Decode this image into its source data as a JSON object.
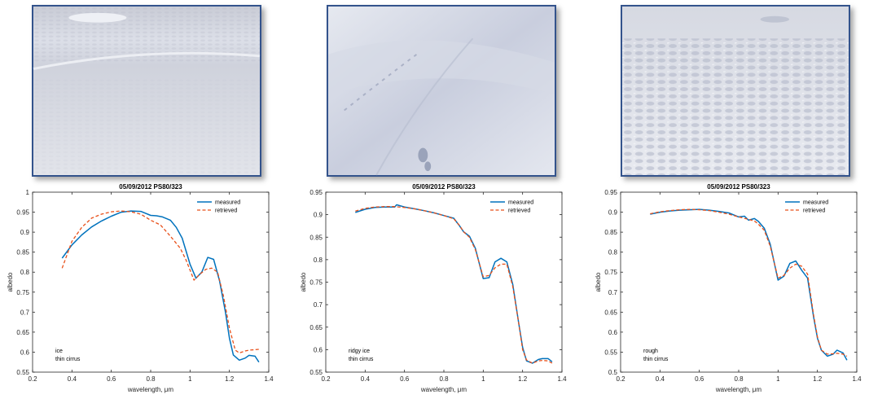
{
  "photos": [
    {
      "name": "ice"
    },
    {
      "name": "ridgy ice"
    },
    {
      "name": "rough"
    }
  ],
  "colors": {
    "measured": "#0072bd",
    "retrieved": "#e8501a",
    "frame": "#33538c"
  },
  "chart_data": [
    {
      "type": "line",
      "title": "05/09/2012 PS80/323",
      "xlabel": "wavelength, μm",
      "ylabel": "albedo",
      "xlim": [
        0.2,
        1.4
      ],
      "ylim": [
        0.55,
        1.0
      ],
      "xticks": [
        "0.2",
        "0.4",
        "0.6",
        "0.8",
        "1",
        "1.2",
        "1.4"
      ],
      "yticks": [
        "0.55",
        "0.6",
        "0.65",
        "0.7",
        "0.75",
        "0.8",
        "0.85",
        "0.9",
        "0.95",
        "1"
      ],
      "legend": {
        "placement": "top-right",
        "measured_label": "measured",
        "retrieved_label": "retrieved"
      },
      "annotation": [
        "ice",
        "thin cirrus"
      ],
      "series": [
        {
          "name": "measured",
          "style": "solid",
          "x": [
            0.35,
            0.4,
            0.45,
            0.5,
            0.55,
            0.6,
            0.65,
            0.7,
            0.75,
            0.8,
            0.83,
            0.86,
            0.9,
            0.93,
            0.96,
            1.0,
            1.03,
            1.06,
            1.09,
            1.12,
            1.15,
            1.18,
            1.2,
            1.22,
            1.25,
            1.28,
            1.3,
            1.33,
            1.35
          ],
          "y": [
            0.835,
            0.868,
            0.893,
            0.913,
            0.928,
            0.94,
            0.95,
            0.953,
            0.952,
            0.942,
            0.941,
            0.938,
            0.93,
            0.912,
            0.885,
            0.82,
            0.785,
            0.8,
            0.837,
            0.832,
            0.778,
            0.7,
            0.635,
            0.593,
            0.58,
            0.585,
            0.592,
            0.59,
            0.575
          ]
        },
        {
          "name": "retrieved",
          "style": "dashed",
          "x": [
            0.35,
            0.4,
            0.45,
            0.5,
            0.55,
            0.6,
            0.65,
            0.7,
            0.75,
            0.8,
            0.85,
            0.9,
            0.95,
            0.98,
            1.02,
            1.05,
            1.08,
            1.11,
            1.14,
            1.17,
            1.2,
            1.23,
            1.25,
            1.28,
            1.3,
            1.35
          ],
          "y": [
            0.81,
            0.877,
            0.912,
            0.935,
            0.945,
            0.951,
            0.953,
            0.951,
            0.945,
            0.93,
            0.918,
            0.89,
            0.86,
            0.83,
            0.78,
            0.795,
            0.807,
            0.81,
            0.8,
            0.74,
            0.66,
            0.605,
            0.598,
            0.603,
            0.605,
            0.607
          ]
        }
      ]
    },
    {
      "type": "line",
      "title": "05/09/2012 PS80/323",
      "xlabel": "wavelength, μm",
      "ylabel": "albedo",
      "xlim": [
        0.2,
        1.4
      ],
      "ylim": [
        0.55,
        0.95
      ],
      "xticks": [
        "0.2",
        "0.4",
        "0.6",
        "0.8",
        "1",
        "1.2",
        "1.4"
      ],
      "yticks": [
        "0.55",
        "0.6",
        "0.65",
        "0.7",
        "0.75",
        "0.8",
        "0.85",
        "0.9",
        "0.95"
      ],
      "legend": {
        "placement": "top-right",
        "measured_label": "measured",
        "retrieved_label": "retrieved"
      },
      "annotation": [
        "ridgy ice",
        "thin cirrus"
      ],
      "series": [
        {
          "name": "measured",
          "style": "solid",
          "x": [
            0.35,
            0.4,
            0.45,
            0.5,
            0.55,
            0.56,
            0.6,
            0.65,
            0.7,
            0.75,
            0.8,
            0.85,
            0.88,
            0.9,
            0.93,
            0.96,
            1.0,
            1.03,
            1.06,
            1.09,
            1.12,
            1.15,
            1.18,
            1.2,
            1.22,
            1.25,
            1.28,
            1.3,
            1.33,
            1.35
          ],
          "y": [
            0.905,
            0.912,
            0.916,
            0.917,
            0.917,
            0.922,
            0.917,
            0.913,
            0.909,
            0.904,
            0.898,
            0.892,
            0.875,
            0.862,
            0.852,
            0.825,
            0.758,
            0.76,
            0.795,
            0.803,
            0.795,
            0.745,
            0.66,
            0.605,
            0.575,
            0.57,
            0.578,
            0.58,
            0.58,
            0.573
          ]
        },
        {
          "name": "retrieved",
          "style": "dashed",
          "x": [
            0.35,
            0.4,
            0.45,
            0.5,
            0.55,
            0.6,
            0.65,
            0.7,
            0.75,
            0.8,
            0.85,
            0.88,
            0.9,
            0.93,
            0.96,
            1.0,
            1.03,
            1.06,
            1.09,
            1.12,
            1.15,
            1.18,
            1.2,
            1.22,
            1.25,
            1.28,
            1.3,
            1.33,
            1.35
          ],
          "y": [
            0.908,
            0.914,
            0.917,
            0.918,
            0.918,
            0.916,
            0.913,
            0.909,
            0.904,
            0.898,
            0.891,
            0.876,
            0.862,
            0.85,
            0.822,
            0.762,
            0.765,
            0.782,
            0.79,
            0.79,
            0.74,
            0.66,
            0.6,
            0.577,
            0.57,
            0.575,
            0.576,
            0.575,
            0.57
          ]
        }
      ]
    },
    {
      "type": "line",
      "title": "05/09/2012 PS80/323",
      "xlabel": "wavelength, μm",
      "ylabel": "albedo",
      "xlim": [
        0.2,
        1.4
      ],
      "ylim": [
        0.5,
        0.95
      ],
      "xticks": [
        "0.2",
        "0.4",
        "0.6",
        "0.8",
        "1",
        "1.2",
        "1.4"
      ],
      "yticks": [
        "0.5",
        "0.55",
        "0.6",
        "0.65",
        "0.7",
        "0.75",
        "0.8",
        "0.85",
        "0.9",
        "0.95"
      ],
      "legend": {
        "placement": "top-right",
        "measured_label": "measured",
        "retrieved_label": "retrieved"
      },
      "annotation": [
        "rough",
        "thin cirrus"
      ],
      "series": [
        {
          "name": "measured",
          "style": "solid",
          "x": [
            0.35,
            0.4,
            0.45,
            0.5,
            0.55,
            0.6,
            0.65,
            0.7,
            0.75,
            0.8,
            0.83,
            0.85,
            0.88,
            0.9,
            0.93,
            0.96,
            1.0,
            1.03,
            1.06,
            1.09,
            1.12,
            1.15,
            1.18,
            1.2,
            1.22,
            1.25,
            1.28,
            1.3,
            1.33,
            1.35
          ],
          "y": [
            0.895,
            0.9,
            0.903,
            0.905,
            0.906,
            0.907,
            0.905,
            0.902,
            0.898,
            0.888,
            0.89,
            0.88,
            0.884,
            0.877,
            0.86,
            0.82,
            0.73,
            0.74,
            0.772,
            0.778,
            0.755,
            0.735,
            0.64,
            0.585,
            0.555,
            0.54,
            0.545,
            0.555,
            0.548,
            0.53
          ]
        },
        {
          "name": "retrieved",
          "style": "dashed",
          "x": [
            0.35,
            0.4,
            0.45,
            0.5,
            0.55,
            0.6,
            0.65,
            0.7,
            0.75,
            0.8,
            0.85,
            0.88,
            0.9,
            0.93,
            0.96,
            1.0,
            1.03,
            1.06,
            1.09,
            1.12,
            1.15,
            1.18,
            1.2,
            1.22,
            1.25,
            1.28,
            1.3,
            1.33,
            1.35
          ],
          "y": [
            0.896,
            0.901,
            0.904,
            0.906,
            0.907,
            0.906,
            0.904,
            0.9,
            0.895,
            0.888,
            0.882,
            0.878,
            0.87,
            0.855,
            0.815,
            0.735,
            0.742,
            0.76,
            0.77,
            0.765,
            0.745,
            0.645,
            0.588,
            0.555,
            0.545,
            0.546,
            0.547,
            0.545,
            0.54
          ]
        }
      ]
    }
  ]
}
